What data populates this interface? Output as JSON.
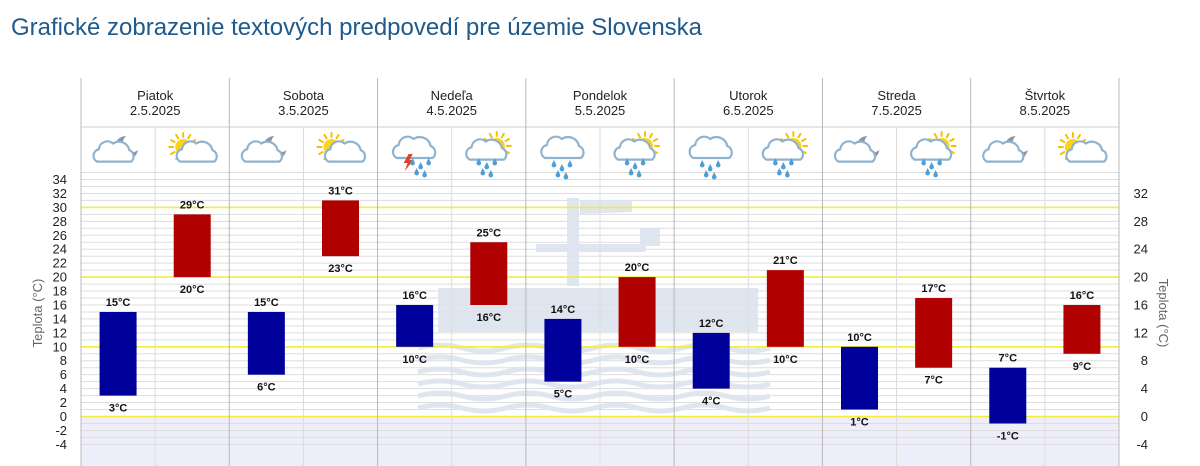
{
  "page": {
    "title": "Grafické zobrazenie textových predpovedí pre územie Slovenska"
  },
  "colors": {
    "min_bar": "#00009a",
    "max_bar": "#b00000",
    "highlight_line": "#f2ee3a",
    "below_zero_band": "#eeeefb",
    "grid": "#dddddd",
    "divider": "#b8b8b8",
    "watermark": "#dde4ee"
  },
  "chart_data": {
    "type": "bar",
    "ylabel": "Teplota (°C)",
    "ylim": [
      -4,
      35
    ],
    "left_ticks": [
      -4,
      -2,
      0,
      2,
      4,
      6,
      8,
      10,
      12,
      14,
      16,
      18,
      20,
      22,
      24,
      26,
      28,
      30,
      32,
      34
    ],
    "right_ticks": [
      -4,
      0,
      4,
      8,
      12,
      16,
      20,
      24,
      28,
      32
    ],
    "highlight_lines": [
      0,
      10,
      20,
      30
    ],
    "grid": true,
    "days": [
      {
        "name": "Piatok",
        "date": "2.5.2025",
        "night": {
          "min": 3,
          "max": 15,
          "min_label": "3°C",
          "max_label": "15°C",
          "icon": "cloud-moon-icon"
        },
        "day": {
          "min": 20,
          "max": 29,
          "min_label": "20°C",
          "max_label": "29°C",
          "icon": "sun-cloud-icon"
        }
      },
      {
        "name": "Sobota",
        "date": "3.5.2025",
        "night": {
          "min": 6,
          "max": 15,
          "min_label": "6°C",
          "max_label": "15°C",
          "icon": "cloud-moon-icon"
        },
        "day": {
          "min": 23,
          "max": 31,
          "min_label": "23°C",
          "max_label": "31°C",
          "icon": "sun-cloud-icon"
        }
      },
      {
        "name": "Nedeľa",
        "date": "4.5.2025",
        "night": {
          "min": 10,
          "max": 16,
          "min_label": "10°C",
          "max_label": "16°C",
          "icon": "thunderstorm-icon"
        },
        "day": {
          "min": 16,
          "max": 25,
          "min_label": "16°C",
          "max_label": "25°C",
          "icon": "sun-rain-icon"
        }
      },
      {
        "name": "Pondelok",
        "date": "5.5.2025",
        "night": {
          "min": 5,
          "max": 14,
          "min_label": "5°C",
          "max_label": "14°C",
          "icon": "rain-cloud-icon"
        },
        "day": {
          "min": 10,
          "max": 20,
          "min_label": "10°C",
          "max_label": "20°C",
          "icon": "sun-rain-icon"
        }
      },
      {
        "name": "Utorok",
        "date": "6.5.2025",
        "night": {
          "min": 4,
          "max": 12,
          "min_label": "4°C",
          "max_label": "12°C",
          "icon": "rain-cloud-icon"
        },
        "day": {
          "min": 10,
          "max": 21,
          "min_label": "10°C",
          "max_label": "21°C",
          "icon": "sun-rain-icon"
        }
      },
      {
        "name": "Streda",
        "date": "7.5.2025",
        "night": {
          "min": 1,
          "max": 10,
          "min_label": "1°C",
          "max_label": "10°C",
          "icon": "cloud-moon-icon"
        },
        "day": {
          "min": 7,
          "max": 17,
          "min_label": "7°C",
          "max_label": "17°C",
          "icon": "sun-rain-icon"
        }
      },
      {
        "name": "Štvrtok",
        "date": "8.5.2025",
        "night": {
          "min": -1,
          "max": 7,
          "min_label": "-1°C",
          "max_label": "7°C",
          "icon": "cloud-moon-icon"
        },
        "day": {
          "min": 9,
          "max": 16,
          "min_label": "9°C",
          "max_label": "16°C",
          "icon": "sun-cloud-icon"
        }
      }
    ]
  }
}
